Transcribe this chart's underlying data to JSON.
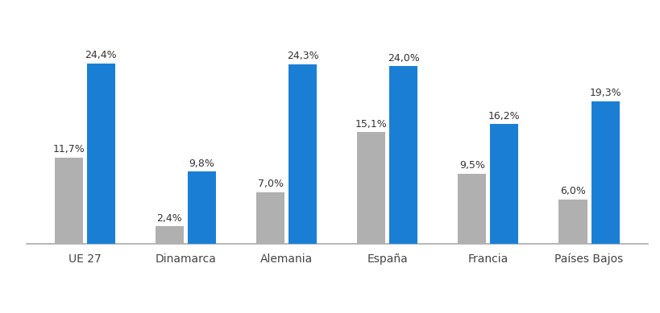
{
  "categories": [
    "UE 27",
    "Dinamarca",
    "Alemania",
    "España",
    "Francia",
    "Países Bajos"
  ],
  "series_2322": [
    11.7,
    2.4,
    7.0,
    15.1,
    9.5,
    6.0
  ],
  "series_2321": [
    24.4,
    9.8,
    24.3,
    24.0,
    16.2,
    19.3
  ],
  "color_2322": "#b0b0b0",
  "color_2321": "#1a7fd4",
  "bar_width": 0.28,
  "ylim": [
    0,
    30
  ],
  "background_color": "#ffffff",
  "fontsize_labels": 9,
  "fontsize_xticks": 10,
  "fontsize_legend": 10
}
